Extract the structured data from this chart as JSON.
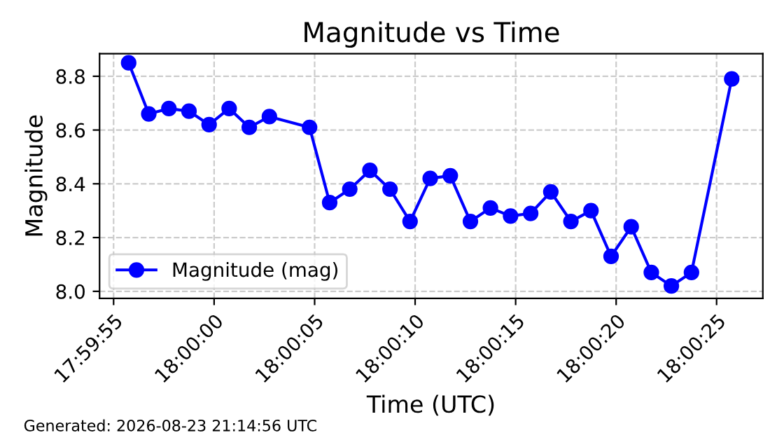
{
  "chart_data": {
    "type": "line",
    "title": "Magnitude vs Time",
    "xlabel": "Time (UTC)",
    "ylabel": "Magnitude",
    "annotations": [
      "Generated: 2026-08-23 21:14:56 UTC"
    ],
    "x": [
      17.998819,
      17.999097,
      17.999375,
      17.999653,
      17.999931,
      18.000208,
      18.000486,
      18.000764,
      18.001319,
      18.001597,
      18.001875,
      18.002153,
      18.002431,
      18.002708,
      18.002986,
      18.003264,
      18.003542,
      18.003819,
      18.004097,
      18.004375,
      18.004653,
      18.004931,
      18.005208,
      18.005486,
      18.005764,
      18.006042,
      18.006319,
      18.006597,
      18.007153
    ],
    "series": [
      {
        "name": "Magnitude (mag)",
        "color": "#0000ff",
        "values": [
          8.85,
          8.66,
          8.68,
          8.67,
          8.62,
          8.68,
          8.61,
          8.65,
          8.61,
          8.33,
          8.38,
          8.45,
          8.38,
          8.26,
          8.42,
          8.43,
          8.26,
          8.31,
          8.28,
          8.29,
          8.37,
          8.26,
          8.3,
          8.13,
          8.24,
          8.07,
          8.02,
          8.07,
          8.79
        ]
      }
    ],
    "xlim": [
      17.998417,
      18.007583
    ],
    "ylim": [
      7.974,
      8.884
    ],
    "xticks": [
      {
        "value": 17.998611,
        "label": "17:59:55"
      },
      {
        "value": 18.0,
        "label": "18:00:00"
      },
      {
        "value": 18.001389,
        "label": "18:00:05"
      },
      {
        "value": 18.002778,
        "label": "18:00:10"
      },
      {
        "value": 18.004167,
        "label": "18:00:15"
      },
      {
        "value": 18.005556,
        "label": "18:00:20"
      },
      {
        "value": 18.006944,
        "label": "18:00:25"
      }
    ],
    "yticks": [
      {
        "value": 8.0,
        "label": "8.0"
      },
      {
        "value": 8.2,
        "label": "8.2"
      },
      {
        "value": 8.4,
        "label": "8.4"
      },
      {
        "value": 8.6,
        "label": "8.6"
      },
      {
        "value": 8.8,
        "label": "8.8"
      }
    ],
    "grid": true,
    "legend": "bottom left",
    "marker": "circle",
    "line_style": "solid"
  }
}
